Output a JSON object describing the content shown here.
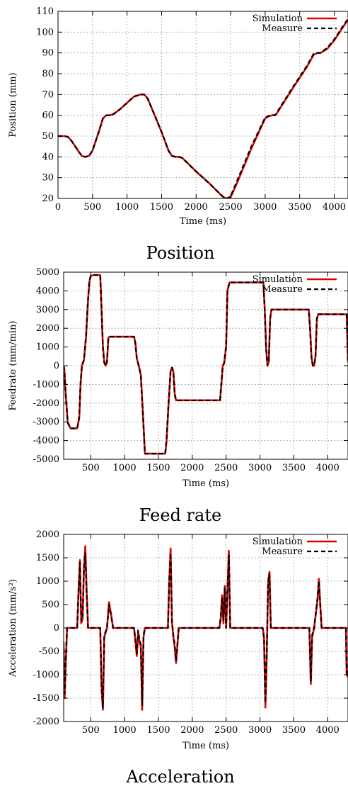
{
  "chart_data": [
    {
      "type": "line",
      "caption": "Position",
      "xlabel": "Time (ms)",
      "ylabel": "Position (mm)",
      "xlim": [
        0,
        4200
      ],
      "ylim": [
        20,
        110
      ],
      "xticks": [
        0,
        500,
        1000,
        1500,
        2000,
        2500,
        3000,
        3500,
        4000
      ],
      "yticks": [
        20,
        30,
        40,
        50,
        60,
        70,
        80,
        90,
        100,
        110
      ],
      "grid": true,
      "legend": "top-right",
      "series": [
        {
          "name": "Simulation",
          "color": "#e00000",
          "style": "solid",
          "x": [
            0,
            100,
            150,
            200,
            300,
            350,
            400,
            450,
            500,
            550,
            600,
            650,
            700,
            750,
            800,
            900,
            1000,
            1100,
            1200,
            1250,
            1300,
            1400,
            1500,
            1600,
            1650,
            1700,
            1750,
            1800,
            2000,
            2200,
            2350,
            2400,
            2450,
            2500,
            2600,
            2800,
            3000,
            3050,
            3100,
            3150,
            3200,
            3400,
            3600,
            3700,
            3750,
            3800,
            3900,
            4000,
            4100,
            4200
          ],
          "y": [
            50,
            50,
            49.5,
            47.5,
            42.5,
            40.3,
            40,
            40.5,
            43,
            48,
            53,
            58.5,
            60,
            60,
            60.5,
            63,
            66,
            69,
            70,
            70,
            68,
            60,
            52,
            43,
            40.5,
            40,
            40,
            39.5,
            33,
            27,
            22,
            20.5,
            20,
            20.5,
            28,
            44,
            58.5,
            59.5,
            60,
            60,
            62.5,
            73,
            83,
            89,
            90,
            90,
            92,
            96,
            101,
            106
          ]
        },
        {
          "name": "Measure",
          "color": "#000000",
          "style": "dashed",
          "x": [
            0,
            100,
            150,
            200,
            300,
            350,
            400,
            450,
            500,
            550,
            600,
            650,
            700,
            750,
            800,
            900,
            1000,
            1100,
            1200,
            1250,
            1300,
            1400,
            1500,
            1600,
            1650,
            1700,
            1750,
            1800,
            2000,
            2200,
            2350,
            2400,
            2450,
            2500,
            2600,
            2800,
            3000,
            3050,
            3100,
            3150,
            3200,
            3400,
            3600,
            3700,
            3750,
            3800,
            3900,
            4000,
            4100,
            4200
          ],
          "y": [
            50,
            50,
            49.5,
            47.5,
            42.5,
            40.3,
            40,
            40.5,
            43,
            48,
            53,
            58.5,
            60,
            60,
            60.5,
            63,
            66,
            69,
            70,
            70,
            68,
            60,
            52,
            43,
            40.5,
            40,
            40,
            39.5,
            33,
            27,
            22,
            20.5,
            20,
            21,
            29,
            45,
            59,
            59.7,
            60,
            60.2,
            63,
            73.5,
            83.5,
            89.5,
            90,
            90,
            92.5,
            96.5,
            101.5,
            106.5
          ]
        }
      ]
    },
    {
      "type": "line",
      "caption": "Feed rate",
      "xlabel": "Time (ms)",
      "ylabel": "Feedrate (mm/min)",
      "xlim": [
        100,
        4300
      ],
      "ylim": [
        -5000,
        5000
      ],
      "xticks": [
        500,
        1000,
        1500,
        2000,
        2500,
        3000,
        3500,
        4000
      ],
      "yticks": [
        -5000,
        -4000,
        -3000,
        -2000,
        -1000,
        0,
        1000,
        2000,
        3000,
        4000,
        5000
      ],
      "grid": true,
      "legend": "top-right",
      "series": [
        {
          "name": "Simulation",
          "color": "#e00000",
          "style": "solid",
          "x": [
            100,
            110,
            130,
            160,
            200,
            250,
            300,
            330,
            350,
            370,
            400,
            430,
            460,
            480,
            500,
            550,
            600,
            640,
            660,
            680,
            700,
            720,
            740,
            760,
            780,
            800,
            900,
            1000,
            1100,
            1140,
            1160,
            1180,
            1210,
            1240,
            1270,
            1300,
            1330,
            1400,
            1500,
            1560,
            1600,
            1620,
            1650,
            1680,
            1700,
            1720,
            1740,
            1760,
            1800,
            1900,
            2000,
            2100,
            2200,
            2300,
            2410,
            2430,
            2450,
            2470,
            2500,
            2520,
            2550,
            2600,
            2700,
            2800,
            2900,
            3000,
            3050,
            3070,
            3090,
            3110,
            3130,
            3150,
            3170,
            3200,
            3300,
            3400,
            3500,
            3600,
            3700,
            3720,
            3740,
            3760,
            3780,
            3800,
            3820,
            3840,
            3860,
            3880,
            3900,
            4000,
            4100,
            4200,
            4280,
            4300
          ],
          "y": [
            0,
            -200,
            -1500,
            -3000,
            -3350,
            -3350,
            -3350,
            -2800,
            -1000,
            0,
            300,
            1500,
            3500,
            4500,
            4800,
            4850,
            4850,
            4850,
            3000,
            1000,
            200,
            0,
            200,
            1500,
            1550,
            1550,
            1550,
            1550,
            1550,
            1550,
            1200,
            400,
            0,
            -500,
            -2500,
            -4700,
            -4700,
            -4700,
            -4700,
            -4700,
            -4700,
            -4000,
            -2000,
            -300,
            -100,
            -300,
            -1500,
            -1850,
            -1850,
            -1850,
            -1850,
            -1850,
            -1850,
            -1850,
            -1850,
            -1000,
            0,
            100,
            1000,
            4000,
            4450,
            4450,
            4450,
            4450,
            4450,
            4450,
            4450,
            3000,
            1000,
            0,
            200,
            2500,
            3000,
            3000,
            3000,
            3000,
            3000,
            3000,
            3000,
            3000,
            2000,
            500,
            0,
            0,
            500,
            2500,
            2750,
            2750,
            2750,
            2750,
            2750,
            2750,
            2750,
            200
          ]
        },
        {
          "name": "Measure",
          "color": "#000000",
          "style": "dashed",
          "x": [
            100,
            110,
            130,
            160,
            200,
            250,
            300,
            330,
            350,
            370,
            400,
            430,
            460,
            480,
            500,
            550,
            600,
            640,
            660,
            680,
            700,
            720,
            740,
            760,
            780,
            800,
            900,
            1000,
            1100,
            1140,
            1160,
            1180,
            1210,
            1240,
            1270,
            1300,
            1330,
            1400,
            1500,
            1560,
            1600,
            1620,
            1650,
            1680,
            1700,
            1720,
            1740,
            1760,
            1800,
            1900,
            2000,
            2100,
            2200,
            2300,
            2410,
            2430,
            2450,
            2470,
            2500,
            2520,
            2550,
            2600,
            2700,
            2800,
            2900,
            3000,
            3050,
            3070,
            3090,
            3110,
            3130,
            3150,
            3170,
            3200,
            3300,
            3400,
            3500,
            3600,
            3700,
            3720,
            3740,
            3760,
            3780,
            3800,
            3820,
            3840,
            3860,
            3880,
            3900,
            4000,
            4100,
            4200,
            4280,
            4300
          ],
          "y": [
            0,
            -300,
            -1600,
            -3050,
            -3350,
            -3350,
            -3350,
            -2700,
            -900,
            0,
            350,
            1600,
            3600,
            4550,
            4800,
            4850,
            4850,
            4850,
            3000,
            900,
            150,
            0,
            250,
            1500,
            1550,
            1550,
            1550,
            1550,
            1550,
            1550,
            1150,
            350,
            0,
            -550,
            -2600,
            -4700,
            -4700,
            -4700,
            -4700,
            -4700,
            -4700,
            -3900,
            -1900,
            -250,
            -100,
            -350,
            -1550,
            -1850,
            -1850,
            -1850,
            -1850,
            -1850,
            -1850,
            -1850,
            -1850,
            -900,
            0,
            150,
            1100,
            4050,
            4450,
            4450,
            4450,
            4450,
            4450,
            4450,
            4450,
            2900,
            900,
            0,
            250,
            2500,
            3000,
            3000,
            3000,
            3000,
            3000,
            3000,
            3000,
            3000,
            1900,
            450,
            0,
            0,
            550,
            2550,
            2750,
            2750,
            2750,
            2750,
            2750,
            2750,
            2750,
            300
          ]
        }
      ]
    },
    {
      "type": "line",
      "caption": "Acceleration",
      "xlabel": "Time (ms)",
      "ylabel": "Acceleration (mm/s²)",
      "xlim": [
        100,
        4300
      ],
      "ylim": [
        -2000,
        2000
      ],
      "xticks": [
        500,
        1000,
        1500,
        2000,
        2500,
        3000,
        3500,
        4000
      ],
      "yticks": [
        -2000,
        -1500,
        -1000,
        -500,
        0,
        500,
        1000,
        1500,
        2000
      ],
      "grid": true,
      "legend": "top-right",
      "series": [
        {
          "name": "Simulation",
          "color": "#e00000",
          "style": "solid",
          "x": [
            100,
            115,
            130,
            150,
            175,
            200,
            300,
            320,
            340,
            360,
            380,
            400,
            420,
            440,
            460,
            480,
            500,
            600,
            640,
            660,
            680,
            700,
            740,
            770,
            800,
            830,
            900,
            1000,
            1100,
            1140,
            1160,
            1180,
            1200,
            1220,
            1240,
            1260,
            1280,
            1300,
            1400,
            1500,
            1600,
            1640,
            1660,
            1680,
            1700,
            1720,
            1740,
            1760,
            1800,
            1900,
            2000,
            2100,
            2200,
            2300,
            2400,
            2420,
            2440,
            2460,
            2480,
            2500,
            2520,
            2540,
            2560,
            2600,
            2700,
            2800,
            2900,
            3000,
            3040,
            3060,
            3080,
            3100,
            3120,
            3140,
            3160,
            3200,
            3300,
            3400,
            3500,
            3600,
            3700,
            3730,
            3750,
            3770,
            3800,
            3850,
            3870,
            3890,
            3910,
            3950,
            4000,
            4100,
            4200,
            4270,
            4280,
            4300
          ],
          "y": [
            -400,
            -1500,
            -800,
            0,
            0,
            0,
            0,
            800,
            1450,
            100,
            200,
            1300,
            1750,
            800,
            0,
            0,
            0,
            0,
            0,
            -1300,
            -1750,
            -200,
            0,
            550,
            300,
            0,
            0,
            0,
            0,
            0,
            -300,
            -600,
            -100,
            -300,
            -400,
            -1750,
            -200,
            0,
            0,
            0,
            0,
            0,
            1000,
            1700,
            150,
            -200,
            -400,
            -750,
            0,
            0,
            0,
            0,
            0,
            0,
            0,
            200,
            700,
            100,
            900,
            0,
            800,
            1650,
            0,
            0,
            0,
            0,
            0,
            0,
            0,
            -200,
            -1700,
            -600,
            1000,
            1200,
            0,
            0,
            0,
            0,
            0,
            0,
            0,
            0,
            -1200,
            -200,
            0,
            600,
            1050,
            500,
            0,
            0,
            0,
            0,
            0,
            0,
            -1000,
            -1050
          ]
        },
        {
          "name": "Measure",
          "color": "#000000",
          "style": "dashed",
          "x": [
            100,
            115,
            130,
            150,
            175,
            200,
            300,
            320,
            340,
            360,
            380,
            400,
            420,
            440,
            460,
            480,
            500,
            600,
            640,
            660,
            680,
            700,
            740,
            770,
            800,
            830,
            900,
            1000,
            1100,
            1140,
            1160,
            1180,
            1200,
            1220,
            1240,
            1260,
            1280,
            1300,
            1400,
            1500,
            1600,
            1640,
            1660,
            1680,
            1700,
            1720,
            1740,
            1760,
            1800,
            1900,
            2000,
            2100,
            2200,
            2300,
            2400,
            2420,
            2440,
            2460,
            2480,
            2500,
            2520,
            2540,
            2560,
            2600,
            2700,
            2800,
            2900,
            3000,
            3040,
            3060,
            3080,
            3100,
            3120,
            3140,
            3160,
            3200,
            3300,
            3400,
            3500,
            3600,
            3700,
            3730,
            3750,
            3770,
            3800,
            3850,
            3870,
            3890,
            3910,
            3950,
            4000,
            4100,
            4200,
            4270,
            4280,
            4300
          ],
          "y": [
            -300,
            -1400,
            -700,
            0,
            0,
            0,
            0,
            850,
            1400,
            150,
            250,
            1250,
            1600,
            700,
            0,
            0,
            0,
            0,
            0,
            -1250,
            -1700,
            -150,
            0,
            500,
            250,
            0,
            0,
            0,
            0,
            0,
            -250,
            -550,
            -50,
            -250,
            -350,
            -1650,
            -150,
            0,
            0,
            0,
            0,
            0,
            1050,
            1600,
            100,
            -150,
            -350,
            -700,
            0,
            0,
            0,
            0,
            0,
            0,
            0,
            250,
            650,
            150,
            850,
            0,
            850,
            1550,
            0,
            0,
            0,
            0,
            0,
            0,
            0,
            -250,
            -1600,
            -500,
            950,
            1150,
            0,
            0,
            0,
            0,
            0,
            0,
            0,
            0,
            -1150,
            -150,
            0,
            650,
            1000,
            450,
            0,
            0,
            0,
            0,
            0,
            0,
            -950,
            -1000
          ]
        }
      ]
    }
  ]
}
